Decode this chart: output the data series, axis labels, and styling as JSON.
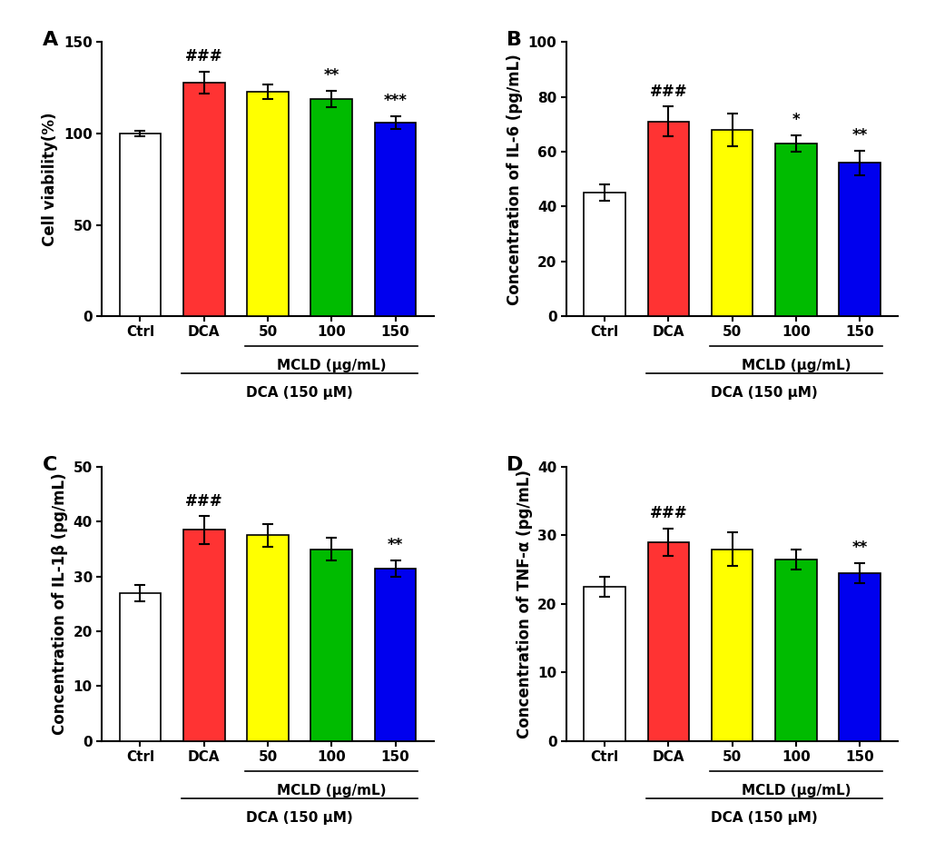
{
  "panels": [
    {
      "label": "A",
      "ylabel": "Cell viability(%)",
      "ylim": [
        0,
        150
      ],
      "yticks": [
        0,
        50,
        100,
        150
      ],
      "categories": [
        "Ctrl",
        "DCA",
        "50",
        "100",
        "150"
      ],
      "values": [
        100,
        128,
        123,
        119,
        106
      ],
      "errors": [
        1.5,
        6,
        4,
        4.5,
        3.5
      ],
      "colors": [
        "#ffffff",
        "#ff3333",
        "#ffff00",
        "#00bb00",
        "#0000ee"
      ],
      "significance": [
        "",
        "###",
        "",
        "**",
        "***"
      ]
    },
    {
      "label": "B",
      "ylabel": "Concentration of IL-6 (pg/mL)",
      "ylim": [
        0,
        100
      ],
      "yticks": [
        0,
        20,
        40,
        60,
        80,
        100
      ],
      "categories": [
        "Ctrl",
        "DCA",
        "50",
        "100",
        "150"
      ],
      "values": [
        45,
        71,
        68,
        63,
        56
      ],
      "errors": [
        3,
        5.5,
        6,
        3,
        4.5
      ],
      "colors": [
        "#ffffff",
        "#ff3333",
        "#ffff00",
        "#00bb00",
        "#0000ee"
      ],
      "significance": [
        "",
        "###",
        "",
        "*",
        "**"
      ]
    },
    {
      "label": "C",
      "ylabel": "Concentration of IL-1β (pg/mL)",
      "ylim": [
        0,
        50
      ],
      "yticks": [
        0,
        10,
        20,
        30,
        40,
        50
      ],
      "categories": [
        "Ctrl",
        "DCA",
        "50",
        "100",
        "150"
      ],
      "values": [
        27,
        38.5,
        37.5,
        35,
        31.5
      ],
      "errors": [
        1.5,
        2.5,
        2,
        2,
        1.5
      ],
      "colors": [
        "#ffffff",
        "#ff3333",
        "#ffff00",
        "#00bb00",
        "#0000ee"
      ],
      "significance": [
        "",
        "###",
        "",
        "",
        "**"
      ]
    },
    {
      "label": "D",
      "ylabel": "Concentration of TNF-α (pg/mL)",
      "ylim": [
        0,
        40
      ],
      "yticks": [
        0,
        10,
        20,
        30,
        40
      ],
      "categories": [
        "Ctrl",
        "DCA",
        "50",
        "100",
        "150"
      ],
      "values": [
        22.5,
        29,
        28,
        26.5,
        24.5
      ],
      "errors": [
        1.5,
        2,
        2.5,
        1.5,
        1.5
      ],
      "colors": [
        "#ffffff",
        "#ff3333",
        "#ffff00",
        "#00bb00",
        "#0000ee"
      ],
      "significance": [
        "",
        "###",
        "",
        "",
        "**"
      ]
    }
  ],
  "xlabel_mcld": "MCLD (μg/mL)",
  "xlabel_dca": "DCA (150 μM)",
  "bar_width": 0.65,
  "edge_color": "#000000",
  "edge_linewidth": 1.2,
  "capsize": 4,
  "error_linewidth": 1.5,
  "tick_fontsize": 11,
  "label_fontsize": 12,
  "sig_fontsize": 12,
  "panel_label_fontsize": 16,
  "background_color": "#ffffff"
}
